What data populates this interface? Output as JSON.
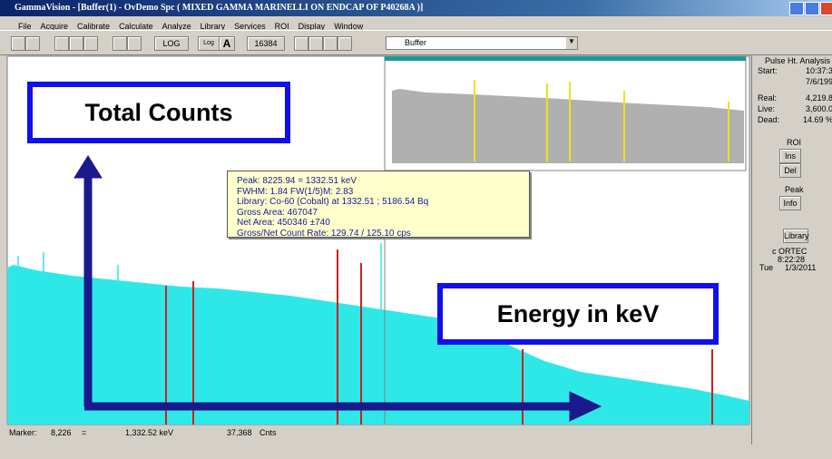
{
  "window": {
    "title": "GammaVision - [Buffer(1) - OvDemo Spc ( MIXED GAMMA MARINELLI ON ENDCAP OF P40268A )]"
  },
  "menu": [
    "File",
    "Acquire",
    "Calibrate",
    "Calculate",
    "Analyze",
    "Library",
    "Services",
    "ROI",
    "Display",
    "Window"
  ],
  "toolbar": {
    "log_button": "LOG",
    "log_toggle": "Log",
    "auto": "A",
    "scale": "16384",
    "detector": "Buffer"
  },
  "side_panel": {
    "heading": "Pulse Ht. Analysis",
    "rows": [
      {
        "label": "Start:",
        "value": "10:37:3"
      },
      {
        "label": "",
        "value": "7/6/199"
      },
      {
        "label": "Real:",
        "value": "4,219.8"
      },
      {
        "label": "Live:",
        "value": "3,600.0"
      },
      {
        "label": "Dead:",
        "value": "14.69 %"
      }
    ],
    "roi": "ROI",
    "ins": "Ins",
    "del": "Del",
    "peak": "Peak",
    "info": "Info",
    "library": "Library",
    "brand": "c ORTEC",
    "time": "8:22:28",
    "day": "Tue",
    "date": "1/3/2011"
  },
  "tooltip": [
    "Peak: 8225.94 = 1332.51 keV",
    "FWHM: 1.84  FW(1/5)M: 2.83",
    "Library: Co-60 (Cobalt) at 1332.51 ;  5186.54 Bq",
    "Gross Area: 467047",
    "Net Area: 450346 ±740",
    "Gross/Net Count Rate: 129.74 / 125.10 cps"
  ],
  "status": {
    "marker_label": "Marker:",
    "channel": "8,226",
    "equals": "=",
    "energy": "1,332.52 keV",
    "counts": "37,368",
    "counts_unit": "Cnts"
  },
  "annotations": {
    "y_axis": "Total Counts",
    "x_axis": "Energy in keV"
  }
}
